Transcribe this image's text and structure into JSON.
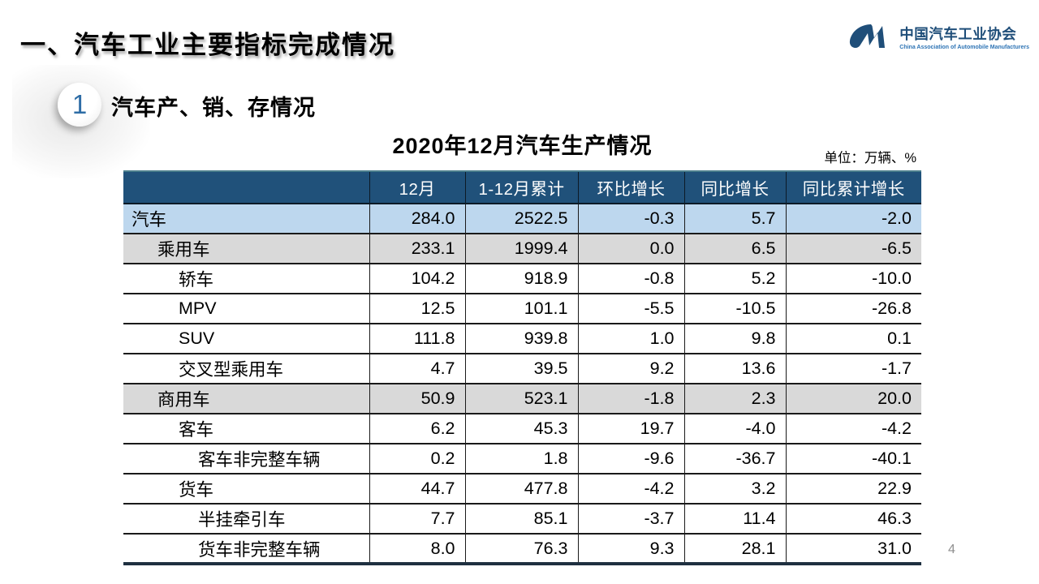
{
  "slide": {
    "title": "一、汽车工业主要指标完成情况",
    "section_number": "1",
    "section_title": "汽车产、销、存情况",
    "table_title": "2020年12月汽车生产情况",
    "unit_label": "单位：万辆、%",
    "page_number": "4"
  },
  "logo": {
    "name_cn": "中国汽车工业协会",
    "name_en": "China Association of Automobile Manufacturers"
  },
  "table": {
    "columns": [
      "",
      "12月",
      "1-12月累计",
      "环比增长",
      "同比增长",
      "同比累计增长"
    ],
    "rows": [
      {
        "label": "汽车",
        "indent": 0,
        "style": "blue",
        "values": [
          "284.0",
          "2522.5",
          "-0.3",
          "5.7",
          "-2.0"
        ]
      },
      {
        "label": "乘用车",
        "indent": 1,
        "style": "gray",
        "values": [
          "233.1",
          "1999.4",
          "0.0",
          "6.5",
          "-6.5"
        ]
      },
      {
        "label": "轿车",
        "indent": 2,
        "style": "white",
        "values": [
          "104.2",
          "918.9",
          "-0.8",
          "5.2",
          "-10.0"
        ]
      },
      {
        "label": "MPV",
        "indent": 2,
        "style": "white",
        "values": [
          "12.5",
          "101.1",
          "-5.5",
          "-10.5",
          "-26.8"
        ]
      },
      {
        "label": "SUV",
        "indent": 2,
        "style": "white",
        "values": [
          "111.8",
          "939.8",
          "1.0",
          "9.8",
          "0.1"
        ]
      },
      {
        "label": "交叉型乘用车",
        "indent": 2,
        "style": "white",
        "values": [
          "4.7",
          "39.5",
          "9.2",
          "13.6",
          "-1.7"
        ]
      },
      {
        "label": "商用车",
        "indent": 1,
        "style": "gray",
        "values": [
          "50.9",
          "523.1",
          "-1.8",
          "2.3",
          "20.0"
        ]
      },
      {
        "label": "客车",
        "indent": 2,
        "style": "white",
        "values": [
          "6.2",
          "45.3",
          "19.7",
          "-4.0",
          "-4.2"
        ]
      },
      {
        "label": "客车非完整车辆",
        "indent": 3,
        "style": "white",
        "values": [
          "0.2",
          "1.8",
          "-9.6",
          "-36.7",
          "-40.1"
        ]
      },
      {
        "label": "货车",
        "indent": 2,
        "style": "white",
        "values": [
          "44.7",
          "477.8",
          "-4.2",
          "3.2",
          "22.9"
        ]
      },
      {
        "label": "半挂牵引车",
        "indent": 3,
        "style": "white",
        "values": [
          "7.7",
          "85.1",
          "-3.7",
          "11.4",
          "46.3"
        ]
      },
      {
        "label": "货车非完整车辆",
        "indent": 3,
        "style": "white",
        "values": [
          "8.0",
          "76.3",
          "9.3",
          "28.1",
          "31.0"
        ]
      }
    ]
  },
  "colors": {
    "header_bg": "#20517A",
    "row_blue": "#BDD7EE",
    "row_gray": "#D9D9D9",
    "accent_navy": "#1F4E79"
  }
}
